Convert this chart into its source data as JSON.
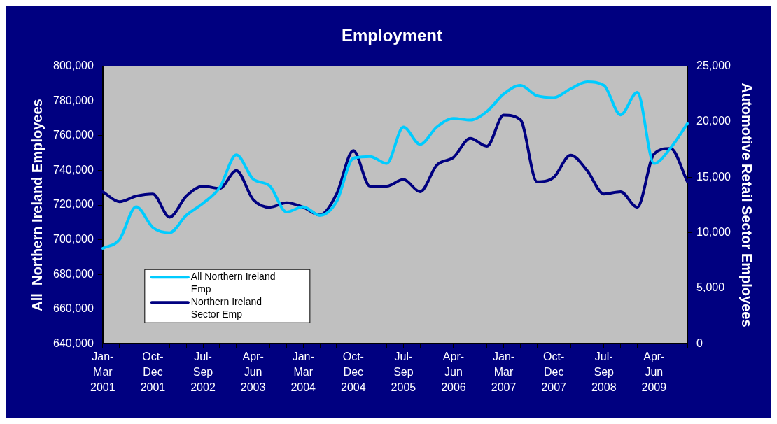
{
  "chart_data": {
    "type": "line",
    "title": "Employment",
    "ylabel": "All  Northern Ireland Employees",
    "y2label": "Automotive Retail Sector Employees",
    "categories": [
      "Jan-Mar 2001",
      null,
      null,
      "Oct-Dec 2001",
      null,
      null,
      "Jul-Sep 2002",
      null,
      null,
      "Apr-Jun 2003",
      null,
      null,
      "Jan-Mar 2004",
      null,
      null,
      "Oct-Dec 2004",
      null,
      null,
      "Jul-Sep 2005",
      null,
      null,
      "Apr-Jun 2006",
      null,
      null,
      "Jan-Mar 2007",
      null,
      null,
      "Oct-Dec 2007",
      null,
      null,
      "Jul-Sep 2008",
      null,
      null,
      "Apr-Jun 2009",
      null,
      null
    ],
    "series": [
      {
        "name": "All Northern Ireland Emp",
        "color": "#00ccff",
        "values": [
          695000,
          700000,
          719000,
          707000,
          704000,
          714000,
          721000,
          730000,
          749000,
          735000,
          731000,
          716000,
          719000,
          714000,
          722000,
          747000,
          748000,
          744000,
          765000,
          755000,
          765000,
          770000,
          769000,
          774000,
          784000,
          789000,
          783000,
          782000,
          787000,
          791000,
          789000,
          772000,
          785000,
          744000,
          753000,
          767000
        ]
      },
      {
        "name": "Northern Ireland Sector Emp",
        "color": "#000080",
        "axis": "y2",
        "values": [
          13700,
          12800,
          13300,
          13500,
          11400,
          13300,
          14200,
          14000,
          15600,
          13000,
          12300,
          12700,
          12300,
          11600,
          13500,
          17400,
          14200,
          14200,
          14800,
          13700,
          16100,
          16800,
          18500,
          17800,
          20600,
          20200,
          14600,
          15000,
          17000,
          15600,
          13500,
          13700,
          12300,
          17100,
          17600,
          14600
        ]
      }
    ],
    "ylim": [
      640000,
      800000
    ],
    "yticks": [
      {
        "value": 640000,
        "label": "640,000"
      },
      {
        "value": 660000,
        "label": "660,000"
      },
      {
        "value": 680000,
        "label": "680,000"
      },
      {
        "value": 700000,
        "label": "700,000"
      },
      {
        "value": 720000,
        "label": "720,000"
      },
      {
        "value": 740000,
        "label": "740,000"
      },
      {
        "value": 760000,
        "label": "760,000"
      },
      {
        "value": 780000,
        "label": "780,000"
      },
      {
        "value": 800000,
        "label": "800,000"
      }
    ],
    "y2lim": [
      0,
      25000
    ],
    "y2ticks": [
      0,
      {
        "value": 5000,
        "label": "5,000"
      },
      {
        "value": 10000,
        "label": "10,000"
      },
      {
        "value": 15000,
        "label": "15,000"
      },
      {
        "value": 20000,
        "label": "20,000"
      },
      {
        "value": 25000,
        "label": "25,000"
      }
    ],
    "grid": false,
    "legend": "bottom left",
    "marker": "none",
    "line_style": "solid"
  }
}
